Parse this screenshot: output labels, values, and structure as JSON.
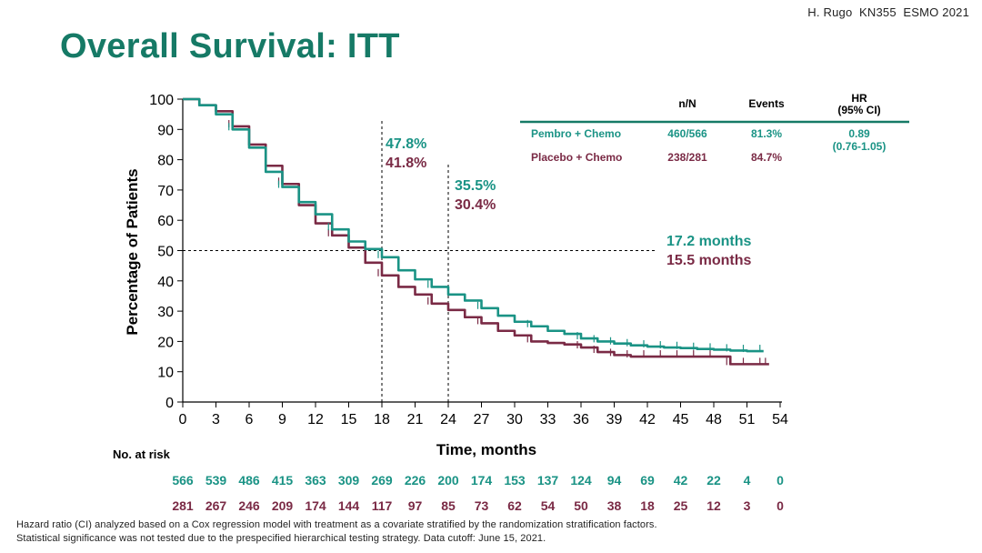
{
  "credit": "H. Rugo  KN355  ESMO 2021",
  "title": "Overall Survival: ITT",
  "colors": {
    "title": "#167a66",
    "pembro": "#1a9385",
    "placebo": "#7a2a45"
  },
  "chart_data": {
    "type": "line",
    "ylabel": "Percentage of Patients",
    "xlabel": "Time, months",
    "xlim": [
      0,
      54
    ],
    "ylim": [
      0,
      100
    ],
    "xticks": [
      0,
      3,
      6,
      9,
      12,
      15,
      18,
      21,
      24,
      27,
      30,
      33,
      36,
      39,
      42,
      45,
      48,
      51,
      54
    ],
    "yticks": [
      0,
      10,
      20,
      30,
      40,
      50,
      60,
      70,
      80,
      90,
      100
    ],
    "series": [
      {
        "name": "Pembro + Chemo",
        "color": "#1a9385",
        "x": [
          0,
          1.5,
          3,
          4.5,
          6,
          7.5,
          9,
          10.5,
          12,
          13.5,
          15,
          16.5,
          18,
          19.5,
          21,
          22.5,
          24,
          25.5,
          27,
          28.5,
          30,
          31.5,
          33,
          34.5,
          36,
          37.5,
          39,
          40.5,
          42,
          43.5,
          45,
          46.5,
          48,
          49.5,
          51,
          52.5
        ],
        "y": [
          100,
          98,
          95,
          90,
          84,
          76,
          71,
          66,
          62,
          57,
          53,
          50.5,
          47.8,
          43.5,
          40.5,
          38,
          35.5,
          33.5,
          31,
          28.5,
          26.5,
          25,
          23.5,
          22.5,
          21,
          20,
          19.3,
          18.7,
          18.3,
          18,
          17.8,
          17.5,
          17.3,
          17,
          16.8,
          16.8
        ]
      },
      {
        "name": "Placebo + Chemo",
        "color": "#7a2a45",
        "x": [
          0,
          1.5,
          3,
          4.5,
          6,
          7.5,
          9,
          10.5,
          12,
          13.5,
          15,
          16.5,
          18,
          19.5,
          21,
          22.5,
          24,
          25.5,
          27,
          28.5,
          30,
          31.5,
          33,
          34.5,
          36,
          37.5,
          39,
          40.5,
          42,
          43.5,
          45,
          46.5,
          48,
          49.5,
          51,
          52.5,
          53
        ],
        "y": [
          100,
          98,
          96,
          91,
          85,
          78,
          72,
          65,
          59,
          55,
          51,
          46,
          41.8,
          38,
          35.5,
          32.5,
          30.4,
          28,
          26,
          23.5,
          22,
          20,
          19.5,
          19,
          18,
          16.5,
          15.5,
          15,
          15,
          15,
          15,
          15,
          15,
          12.5,
          12.5,
          12.5,
          12.5
        ]
      }
    ],
    "annotations": {
      "m18": {
        "x": 18,
        "pembro": "47.8%",
        "placebo": "41.8%"
      },
      "m24": {
        "x": 24,
        "pembro": "35.5%",
        "placebo": "30.4%"
      },
      "median": {
        "y": 50,
        "pembro": "17.2 months",
        "placebo": "15.5 months"
      }
    },
    "table": {
      "headers": {
        "nN": "n/N",
        "events": "Events",
        "hr": "HR",
        "ci": "(95% CI)"
      },
      "rows": [
        {
          "name": "Pembro + Chemo",
          "nN": "460/566",
          "events": "81.3%"
        },
        {
          "name": "Placebo + Chemo",
          "nN": "238/281",
          "events": "84.7%"
        }
      ],
      "hr": "0.89",
      "ci": "(0.76-1.05)"
    },
    "risk_table": {
      "label": "No. at risk",
      "pembro": [
        566,
        539,
        486,
        415,
        363,
        309,
        269,
        226,
        200,
        174,
        153,
        137,
        124,
        94,
        69,
        42,
        22,
        4,
        0
      ],
      "placebo": [
        281,
        267,
        246,
        209,
        174,
        144,
        117,
        97,
        85,
        73,
        62,
        54,
        50,
        38,
        18,
        25,
        12,
        3,
        0
      ]
    }
  },
  "footnotes": [
    "Hazard ratio (CI) analyzed based on a Cox regression model with treatment as a covariate stratified by the randomization stratification factors.",
    "Statistical significance was not tested due to the prespecified hierarchical testing strategy. Data cutoff: June 15, 2021."
  ]
}
